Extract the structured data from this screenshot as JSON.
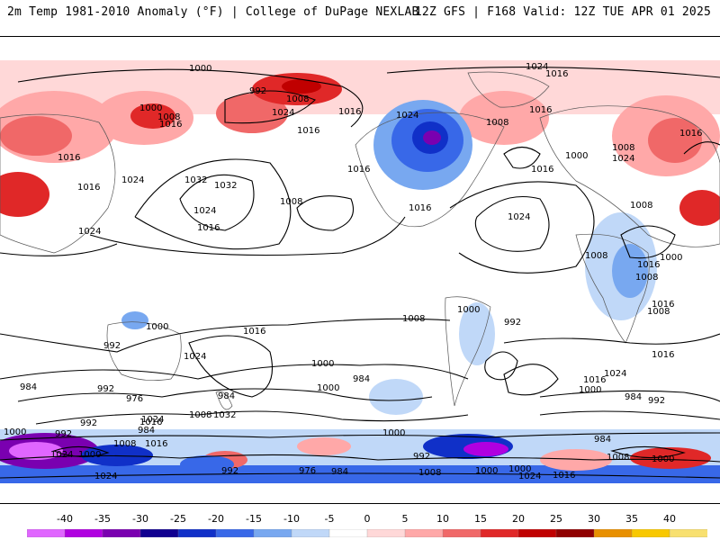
{
  "header": {
    "left_title": "2m Temp 1981-2010 Anomaly (°F) | College of DuPage NEXLAB",
    "right_title": "12Z GFS | F168 Valid: 12Z TUE APR 01 2025"
  },
  "map": {
    "type": "global temperature anomaly map with sea-level pressure isobars",
    "isobar_labels": [
      "1000",
      "992",
      "1008",
      "1000",
      "1008",
      "1024",
      "1016",
      "1016",
      "1016",
      "1024",
      "1032",
      "1032",
      "1024",
      "1016",
      "1008",
      "1016",
      "1024",
      "1016",
      "1024",
      "1016",
      "1008",
      "1016",
      "1000",
      "1016",
      "1024",
      "1008",
      "1016",
      "1024",
      "1008",
      "1008",
      "1000",
      "1008",
      "1016",
      "1016",
      "1008",
      "1016",
      "1016",
      "1024",
      "1000",
      "992",
      "1024",
      "1016",
      "1008",
      "992",
      "1000",
      "1000",
      "984",
      "992",
      "976",
      "984",
      "1000",
      "984",
      "1032",
      "1024",
      "1008",
      "1016",
      "984",
      "992",
      "1000",
      "992",
      "1000",
      "1024",
      "1000",
      "976",
      "984",
      "1016",
      "1024",
      "1008",
      "992",
      "1008",
      "992",
      "1000",
      "1016",
      "1024",
      "1016",
      "1000",
      "984",
      "992",
      "984",
      "1008",
      "1000",
      "1000",
      "1024",
      "1016"
    ]
  },
  "colorbar": {
    "unit": "°F",
    "ticks": [
      "-40",
      "-35",
      "-30",
      "-25",
      "-20",
      "-15",
      "-10",
      "-5",
      "0",
      "5",
      "10",
      "15",
      "20",
      "25",
      "30",
      "35",
      "40"
    ],
    "colors": [
      "#e066ff",
      "#b000e0",
      "#7a00b0",
      "#100090",
      "#1030c8",
      "#3868e8",
      "#78a8f0",
      "#c0d8f8",
      "#ffffff",
      "#ffd8d8",
      "#ffa8a8",
      "#f06868",
      "#e02828",
      "#c00000",
      "#900000",
      "#e89000",
      "#f8c800",
      "#f8e070"
    ]
  }
}
